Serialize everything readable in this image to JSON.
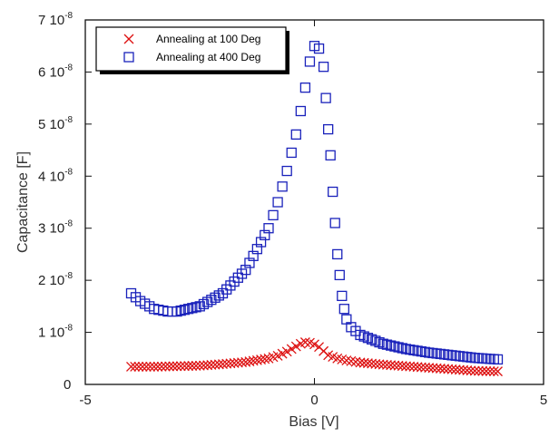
{
  "chart_data": {
    "type": "scatter",
    "title": "",
    "xlabel": "Bias [V]",
    "ylabel": "Capacitance [F]",
    "xlim": [
      -5,
      5
    ],
    "ylim": [
      0,
      7e-08
    ],
    "x_ticks": [
      {
        "value": -5,
        "label": "-5"
      },
      {
        "value": 0,
        "label": "0"
      },
      {
        "value": 5,
        "label": "5"
      }
    ],
    "y_ticks": [
      {
        "value": 0,
        "mant": "0",
        "exp": ""
      },
      {
        "value": 1e-08,
        "mant": "1",
        "exp": "-8"
      },
      {
        "value": 2e-08,
        "mant": "2",
        "exp": "-8"
      },
      {
        "value": 3e-08,
        "mant": "3",
        "exp": "-8"
      },
      {
        "value": 4e-08,
        "mant": "4",
        "exp": "-8"
      },
      {
        "value": 5e-08,
        "mant": "5",
        "exp": "-8"
      },
      {
        "value": 6e-08,
        "mant": "6",
        "exp": "-8"
      },
      {
        "value": 7e-08,
        "mant": "7",
        "exp": "-8"
      }
    ],
    "y_tick_base": "10",
    "grid": false,
    "legend_position": "top-left",
    "series": [
      {
        "name": "Annealing at 100 Deg",
        "marker": "x",
        "color": "#dd1111",
        "x": [
          -4.0,
          -3.5,
          -3.0,
          -2.5,
          -2.0,
          -1.5,
          -1.0,
          -0.8,
          -0.6,
          -0.4,
          -0.3,
          -0.2,
          -0.1,
          0.0,
          0.1,
          0.2,
          0.3,
          0.5,
          0.7,
          1.0,
          1.5,
          2.0,
          2.5,
          3.0,
          3.5,
          4.0
        ],
        "y": [
          3.4e-09,
          3.4e-09,
          3.5e-09,
          3.6e-09,
          3.9e-09,
          4.3e-09,
          5e-09,
          5.5e-09,
          6.3e-09,
          7.3e-09,
          7.8e-09,
          8.1e-09,
          8e-09,
          7.7e-09,
          7.2e-09,
          6.4e-09,
          5.6e-09,
          5e-09,
          4.6e-09,
          4.2e-09,
          3.8e-09,
          3.5e-09,
          3.2e-09,
          2.9e-09,
          2.6e-09,
          2.5e-09
        ]
      },
      {
        "name": "Annealing at 400 Deg",
        "marker": "square",
        "color": "#1a22bb",
        "x": [
          -4.0,
          -3.8,
          -3.5,
          -3.2,
          -3.0,
          -2.5,
          -2.0,
          -1.5,
          -1.0,
          -0.8,
          -0.6,
          -0.4,
          -0.2,
          -0.1,
          0.0,
          0.1,
          0.2,
          0.25,
          0.3,
          0.35,
          0.4,
          0.45,
          0.5,
          0.55,
          0.6,
          0.65,
          0.7,
          0.8,
          1.0,
          1.5,
          2.0,
          2.5,
          3.0,
          3.5,
          4.0
        ],
        "y": [
          1.75e-08,
          1.6e-08,
          1.45e-08,
          1.4e-08,
          1.4e-08,
          1.5e-08,
          1.75e-08,
          2.2e-08,
          3e-08,
          3.5e-08,
          4.1e-08,
          4.8e-08,
          5.7e-08,
          6.2e-08,
          6.5e-08,
          6.45e-08,
          6.1e-08,
          5.5e-08,
          4.9e-08,
          4.4e-08,
          3.7e-08,
          3.1e-08,
          2.5e-08,
          2.1e-08,
          1.7e-08,
          1.45e-08,
          1.25e-08,
          1.1e-08,
          9.5e-09,
          7.8e-09,
          6.8e-09,
          6.1e-09,
          5.6e-09,
          5.1e-09,
          4.8e-09
        ]
      }
    ]
  }
}
